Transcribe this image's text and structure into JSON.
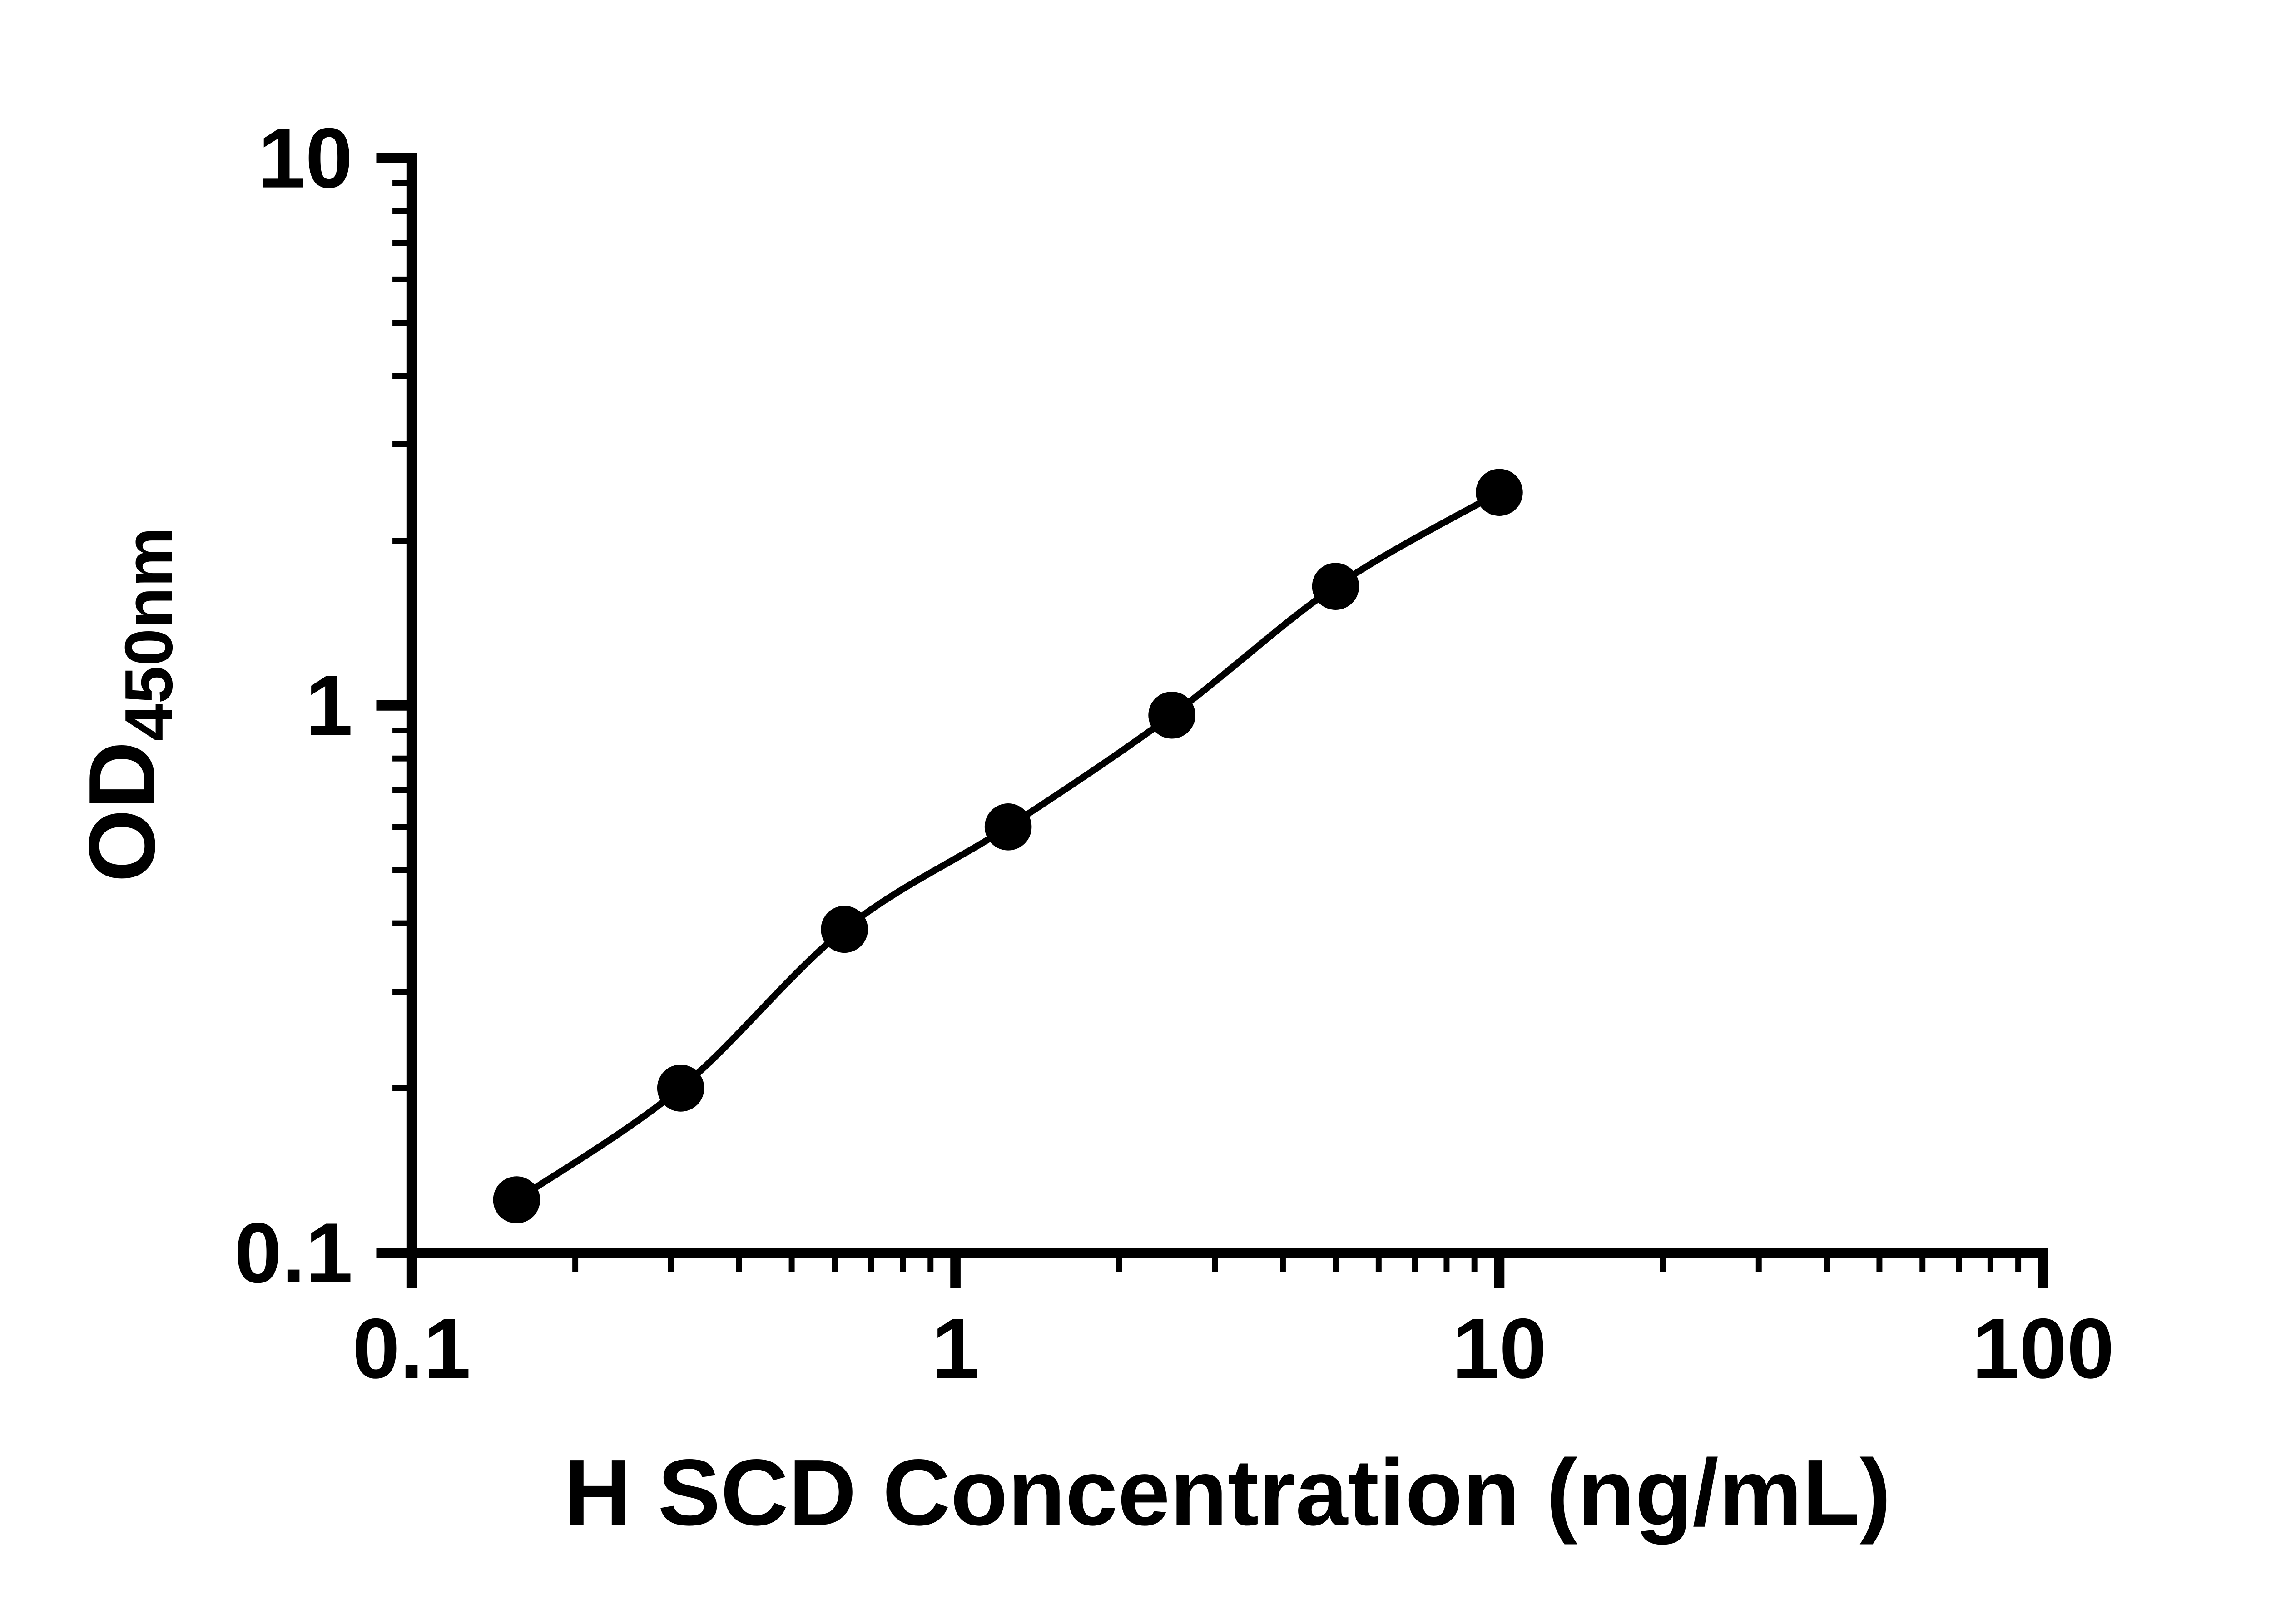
{
  "chart_data": {
    "type": "scatter",
    "subtype": "standard-curve-with-connecting-line",
    "x_scale": "log",
    "y_scale": "log",
    "x": [
      0.156,
      0.3125,
      0.625,
      1.25,
      2.5,
      5,
      10
    ],
    "y": [
      0.125,
      0.2,
      0.39,
      0.6,
      0.96,
      1.65,
      2.45
    ],
    "title": "",
    "xlabel": "H SCD Concentration (ng/mL)",
    "ylabel_main": "OD",
    "ylabel_sub": "450nm",
    "xlim": [
      0.1,
      100
    ],
    "ylim": [
      0.1,
      10
    ],
    "x_tick_values": [
      0.1,
      1,
      10,
      100
    ],
    "x_tick_labels": [
      "0.1",
      "1",
      "10",
      "100"
    ],
    "y_tick_values": [
      10,
      1,
      0.1
    ],
    "y_tick_labels": [
      "10",
      "1",
      "0.1"
    ],
    "grid": false,
    "legend": false,
    "marker_color": "#000000",
    "line_color": "#000000",
    "axis_color": "#000000"
  }
}
